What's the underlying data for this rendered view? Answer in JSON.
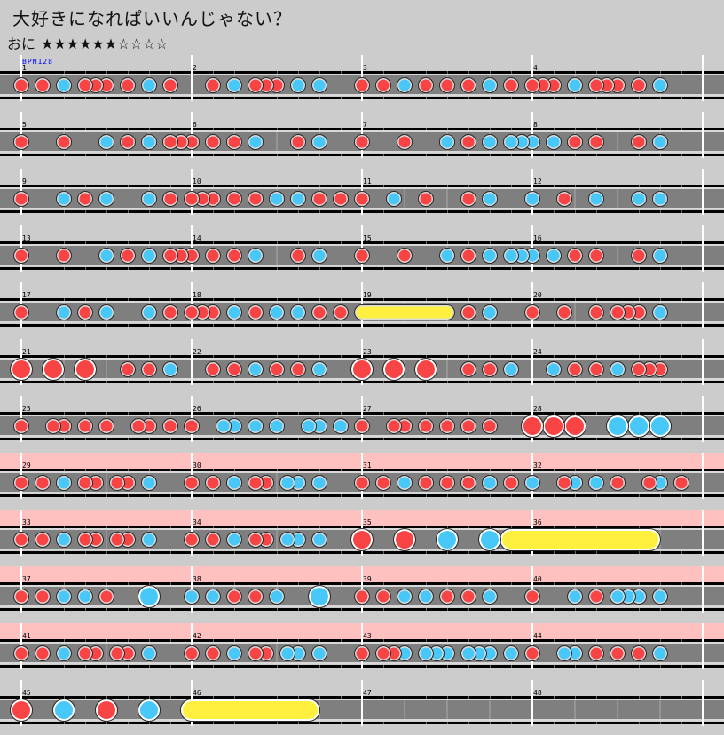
{
  "song_title": "大好きになれぱいいんじゃない？",
  "course": {
    "name": "おに",
    "stars": "★★★★★★☆☆☆☆",
    "level": 6,
    "max_level": 10
  },
  "bpm_label": "BPM128",
  "colors": {
    "background": "#cccccc",
    "don": "#f84444",
    "ka": "#48c8f8",
    "drumroll": "#fff040",
    "gogo": "#ffc0c0",
    "lane": "#7f7f7f"
  },
  "note_legend": {
    "0": "none",
    "1": "don",
    "2": "ka",
    "3": "big-don",
    "4": "big-ka",
    "5": "drumroll-start",
    "6": "big-drumroll-start",
    "8": "drumroll-end"
  },
  "measures": [
    {
      "number": "1",
      "notes": "1010201110102010",
      "gogo": false
    },
    {
      "number": "2",
      "notes": "0010201110202000",
      "gogo": false
    },
    {
      "number": "3",
      "notes": "1010201010102010",
      "gogo": false
    },
    {
      "number": "4",
      "notes": "1110201110102000",
      "gogo": false
    },
    {
      "number": "5",
      "notes": "1000100020102011",
      "gogo": false
    },
    {
      "number": "6",
      "notes": "1010102000102000",
      "gogo": false
    },
    {
      "number": "7",
      "notes": "1000100020102022",
      "gogo": false
    },
    {
      "number": "8",
      "notes": "2020101000102000",
      "gogo": false
    },
    {
      "number": "9",
      "notes": "1000201020002010",
      "gogo": false
    },
    {
      "number": "10",
      "notes": "1110101020201010",
      "gogo": false
    },
    {
      "number": "11",
      "notes": "1002001000102000",
      "gogo": false
    },
    {
      "number": "12",
      "notes": "2001002000202000",
      "gogo": false
    },
    {
      "number": "13",
      "notes": "1000100020102011",
      "gogo": false
    },
    {
      "number": "14",
      "notes": "1010102000102000",
      "gogo": false
    },
    {
      "number": "15",
      "notes": "1000100020102022",
      "gogo": false
    },
    {
      "number": "16",
      "notes": "2020101000102000",
      "gogo": false
    },
    {
      "number": "17",
      "notes": "1000201020002010",
      "gogo": false
    },
    {
      "number": "18",
      "notes": "1110201020201010",
      "gogo": false
    },
    {
      "number": "19",
      "notes": "5000000080102000",
      "gogo": false
    },
    {
      "number": "20",
      "notes": "1001001011102000",
      "gogo": false
    },
    {
      "number": "21",
      "notes": "3003003000101020",
      "gogo": false
    },
    {
      "number": "22",
      "notes": "0010102010102000",
      "gogo": false
    },
    {
      "number": "23",
      "notes": "3003003000101020",
      "gogo": false
    },
    {
      "number": "24",
      "notes": "0020101020111000",
      "gogo": false
    },
    {
      "number": "25",
      "notes": "1001101010011010",
      "gogo": false
    },
    {
      "number": "26",
      "notes": "1002202020022020",
      "gogo": false
    },
    {
      "number": "27",
      "notes": "1001101010101000",
      "gogo": false
    },
    {
      "number": "28",
      "notes": "3030300040404000",
      "gogo": false
    },
    {
      "number": "29",
      "notes": "1010201101102000",
      "gogo": true
    },
    {
      "number": "30",
      "notes": "1010201102202000",
      "gogo": true
    },
    {
      "number": "31",
      "notes": "1010201010102010",
      "gogo": true
    },
    {
      "number": "32",
      "notes": "2001202010012010",
      "gogo": true
    },
    {
      "number": "33",
      "notes": "1010201101102000",
      "gogo": true
    },
    {
      "number": "34",
      "notes": "1010201102202000",
      "gogo": true
    },
    {
      "number": "35",
      "notes": "3000300040004060",
      "gogo": true
    },
    {
      "number": "36",
      "notes": "0000000000080000",
      "gogo": true
    },
    {
      "number": "37",
      "notes": "1010202010004000",
      "gogo": true
    },
    {
      "number": "38",
      "notes": "2020101020004000",
      "gogo": true
    },
    {
      "number": "39",
      "notes": "1010202010102000",
      "gogo": true
    },
    {
      "number": "40",
      "notes": "1000201022202000",
      "gogo": true
    },
    {
      "number": "41",
      "notes": "1010201101102000",
      "gogo": true
    },
    {
      "number": "42",
      "notes": "1010201102202000",
      "gogo": true
    },
    {
      "number": "43",
      "notes": "1011202220222020",
      "gogo": true
    },
    {
      "number": "44",
      "notes": "1002201010102000",
      "gogo": true
    },
    {
      "number": "45",
      "notes": "3000400030004000",
      "gogo": false
    },
    {
      "number": "46",
      "notes": "6000000000080000",
      "gogo": false
    },
    {
      "number": "47",
      "notes": "0000000000000000",
      "gogo": false
    },
    {
      "number": "48",
      "notes": "0000000000000000",
      "gogo": false
    }
  ]
}
